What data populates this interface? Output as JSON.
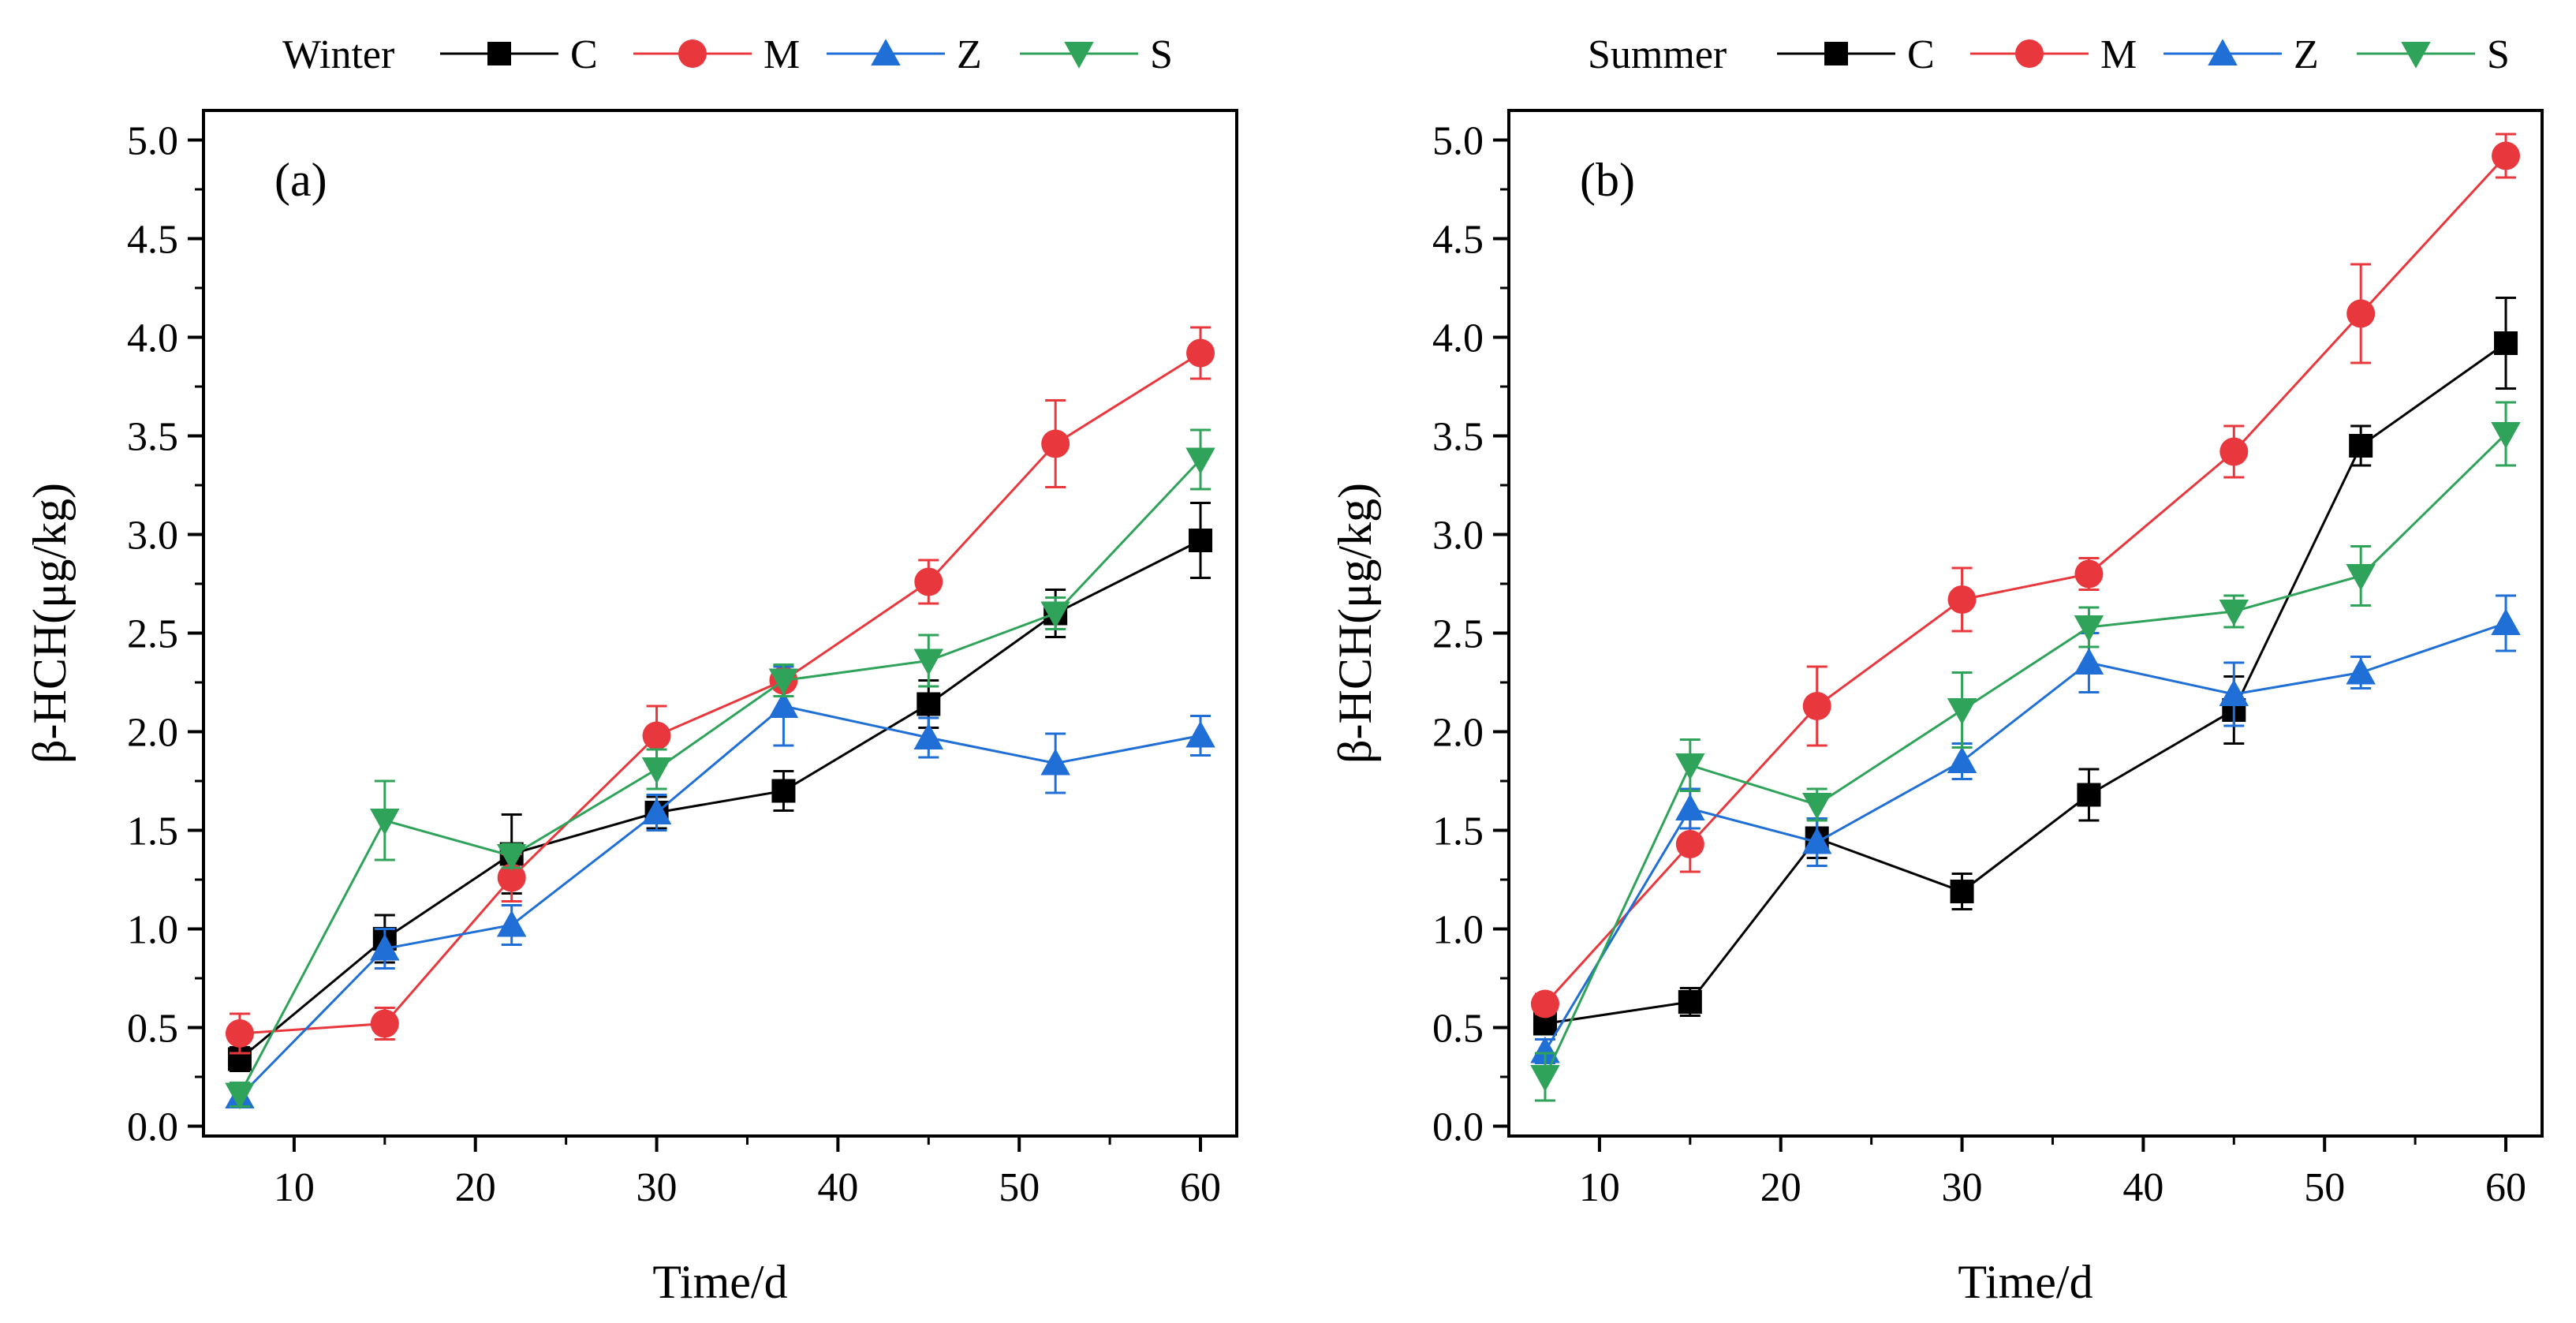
{
  "colors": {
    "C": "#000000",
    "M": "#e8383d",
    "Z": "#1f6fd6",
    "S": "#2fa35a"
  },
  "markers": {
    "C": "square",
    "M": "circle",
    "Z": "triangle-up",
    "S": "triangle-down"
  },
  "chart_data": [
    {
      "type": "line",
      "panel": "(a)",
      "legend_title": "Winter",
      "xlabel": "Time/d",
      "ylabel": "β-HCH(μg/kg)",
      "xlim": [
        5,
        62
      ],
      "ylim": [
        -0.05,
        5.15
      ],
      "xticks": [
        10,
        20,
        30,
        40,
        50,
        60
      ],
      "yticks": [
        0.0,
        0.5,
        1.0,
        1.5,
        2.0,
        2.5,
        3.0,
        3.5,
        4.0,
        4.5,
        5.0
      ],
      "x": [
        7,
        15,
        22,
        30,
        37,
        45,
        52,
        60
      ],
      "series": [
        {
          "name": "C",
          "values": [
            0.34,
            0.95,
            1.38,
            1.59,
            1.7,
            2.14,
            2.6,
            2.97
          ],
          "errors": [
            0.06,
            0.12,
            0.2,
            0.08,
            0.1,
            0.12,
            0.12,
            0.19
          ]
        },
        {
          "name": "M",
          "values": [
            0.47,
            0.52,
            1.26,
            1.98,
            2.26,
            2.76,
            3.46,
            3.92
          ],
          "errors": [
            0.1,
            0.08,
            0.12,
            0.15,
            0.08,
            0.11,
            0.22,
            0.13
          ]
        },
        {
          "name": "Z",
          "values": [
            0.15,
            0.9,
            1.02,
            1.59,
            2.13,
            1.97,
            1.84,
            1.98
          ],
          "errors": [
            0.05,
            0.1,
            0.1,
            0.09,
            0.2,
            0.1,
            0.15,
            0.1
          ]
        },
        {
          "name": "S",
          "values": [
            0.16,
            1.55,
            1.37,
            1.81,
            2.26,
            2.36,
            2.6,
            3.38
          ],
          "errors": [
            0.06,
            0.2,
            0.06,
            0.1,
            0.08,
            0.13,
            0.08,
            0.15
          ]
        }
      ]
    },
    {
      "type": "line",
      "panel": "(b)",
      "legend_title": "Summer",
      "xlabel": "Time/d",
      "ylabel": "β-HCH(μg/kg)",
      "xlim": [
        5,
        62
      ],
      "ylim": [
        -0.05,
        5.15
      ],
      "xticks": [
        10,
        20,
        30,
        40,
        50,
        60
      ],
      "yticks": [
        0.0,
        0.5,
        1.0,
        1.5,
        2.0,
        2.5,
        3.0,
        3.5,
        4.0,
        4.5,
        5.0
      ],
      "x": [
        7,
        15,
        22,
        30,
        37,
        45,
        52,
        60
      ],
      "series": [
        {
          "name": "C",
          "values": [
            0.52,
            0.63,
            1.46,
            1.19,
            1.68,
            2.11,
            3.45,
            3.97
          ],
          "errors": [
            0.05,
            0.07,
            0.1,
            0.09,
            0.13,
            0.17,
            0.1,
            0.23
          ]
        },
        {
          "name": "M",
          "values": [
            0.62,
            1.43,
            2.13,
            2.67,
            2.8,
            3.42,
            4.12,
            4.92
          ],
          "errors": [
            0.05,
            0.14,
            0.2,
            0.16,
            0.08,
            0.13,
            0.25,
            0.11
          ]
        },
        {
          "name": "Z",
          "values": [
            0.38,
            1.61,
            1.44,
            1.85,
            2.35,
            2.19,
            2.3,
            2.55
          ],
          "errors": [
            0.06,
            0.1,
            0.12,
            0.09,
            0.15,
            0.16,
            0.08,
            0.14
          ]
        },
        {
          "name": "S",
          "values": [
            0.25,
            1.83,
            1.63,
            2.11,
            2.53,
            2.61,
            2.79,
            3.51
          ],
          "errors": [
            0.12,
            0.13,
            0.08,
            0.19,
            0.1,
            0.08,
            0.15,
            0.16
          ]
        }
      ]
    }
  ]
}
